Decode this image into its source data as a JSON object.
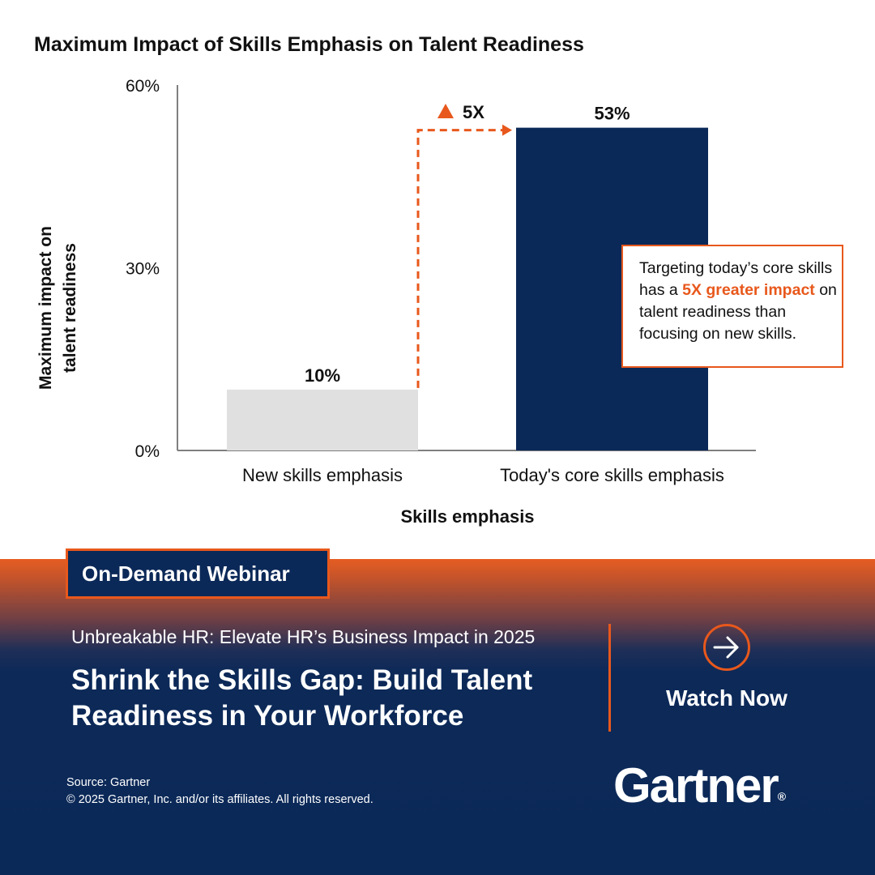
{
  "chart_data": {
    "type": "bar",
    "title": "Maximum Impact of Skills Emphasis on Talent Readiness",
    "xlabel": "Skills emphasis",
    "ylabel_lines": [
      "Maximum impact on",
      "talent readiness"
    ],
    "categories": [
      "New skills emphasis",
      "Today's core skills emphasis"
    ],
    "values": [
      10,
      53
    ],
    "data_labels": [
      "10%",
      "53%"
    ],
    "ylim": [
      0,
      60
    ],
    "yticks": [
      0,
      30,
      60
    ],
    "ytick_labels": [
      "0%",
      "30%",
      "60%"
    ],
    "bar_colors": [
      "#e0e0e0",
      "#0b2958"
    ],
    "grid": false,
    "legend": "none",
    "annotation": {
      "label": "5X",
      "color": "#e8581c",
      "callout": {
        "text_before": "Targeting today’s core skills has a ",
        "highlight": "5X greater impact",
        "text_after": " on talent readiness than focusing on new skills."
      }
    }
  },
  "banner": {
    "badge": "On-Demand Webinar",
    "subtitle": "Unbreakable HR: Elevate HR’s Business Impact in 2025",
    "headline": "Shrink the Skills Gap: Build Talent Readiness in Your Workforce",
    "cta_label": "Watch Now",
    "cta_icon": "arrow-right-icon",
    "source_line1": "Source: Gartner",
    "source_line2": "© 2025 Gartner, Inc. and/or its affiliates. All rights reserved.",
    "logo_text": "Gartner",
    "logo_mark": "®",
    "accent_color": "#e8581c",
    "navy_color": "#0b2958"
  }
}
